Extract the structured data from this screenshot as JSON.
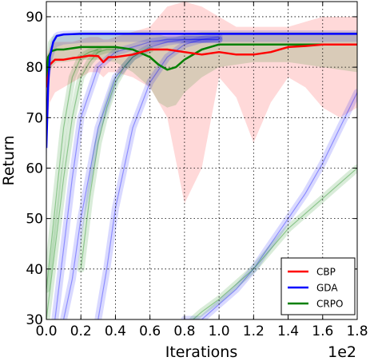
{
  "chart_data": {
    "type": "line",
    "xlabel": "Iterations",
    "ylabel": "Return",
    "x_offset_label": "1e2",
    "xlim": [
      0,
      1.8
    ],
    "ylim": [
      30,
      93
    ],
    "xticks": [
      0.0,
      0.2,
      0.4,
      0.6,
      0.8,
      1.0,
      1.2,
      1.4,
      1.6,
      1.8
    ],
    "xtick_labels": [
      "0.0",
      "0.2",
      "0.4",
      "0.6",
      "0.8",
      "1.0",
      "1.2",
      "1.4",
      "1.6",
      "1.8"
    ],
    "yticks": [
      30,
      40,
      50,
      60,
      70,
      80,
      90
    ],
    "ytick_labels": [
      "30",
      "40",
      "50",
      "60",
      "70",
      "80",
      "90"
    ],
    "grid": true,
    "legend_position": "lower-right",
    "colors": {
      "CBP": "#ff0000",
      "GDA": "#0000ff",
      "CRPO": "#008000"
    },
    "series": [
      {
        "name": "CBP",
        "x": [
          0.0,
          0.02,
          0.05,
          0.1,
          0.15,
          0.2,
          0.25,
          0.3,
          0.33,
          0.36,
          0.4,
          0.5,
          0.6,
          0.7,
          0.8,
          0.9,
          1.0,
          1.1,
          1.2,
          1.3,
          1.4,
          1.5,
          1.6,
          1.7,
          1.8
        ],
        "mean": [
          76,
          80.5,
          81.5,
          81.5,
          81.8,
          82,
          82.3,
          82.2,
          81,
          82,
          82,
          82.5,
          83.5,
          83.5,
          83,
          82.5,
          83,
          82.5,
          82.5,
          83,
          84,
          84.2,
          84.5,
          84.5,
          84.5
        ],
        "lower": [
          66,
          73,
          75,
          76,
          77,
          78,
          79,
          79,
          78,
          79,
          79,
          78,
          76,
          70,
          53,
          60,
          78,
          74,
          65,
          73,
          78,
          76,
          72,
          70,
          72
        ],
        "upper": [
          82,
          84,
          85,
          85,
          85,
          85.5,
          86,
          86,
          85.5,
          85.5,
          86,
          87,
          88,
          92,
          93,
          92,
          90,
          88,
          88,
          88,
          88,
          89,
          90,
          90,
          90
        ]
      },
      {
        "name": "GDA",
        "x": [
          0.0,
          0.01,
          0.02,
          0.04,
          0.06,
          0.1,
          0.2,
          0.4,
          0.6,
          0.8,
          1.0,
          1.2,
          1.4,
          1.6,
          1.8
        ],
        "mean": [
          64,
          76,
          82,
          85,
          86.2,
          86.5,
          86.6,
          86.6,
          86.6,
          86.6,
          86.6,
          86.6,
          86.6,
          86.6,
          86.6
        ],
        "lower": [
          60,
          70,
          78,
          82,
          84,
          84.5,
          84.8,
          85,
          85,
          85,
          85,
          85,
          85,
          85,
          85
        ],
        "upper": [
          68,
          80,
          84.5,
          86.5,
          87,
          87.2,
          87.3,
          87.3,
          87.3,
          87.3,
          87.3,
          87.3,
          87.3,
          87.3,
          87.3
        ]
      },
      {
        "name": "CRPO",
        "x": [
          0.0,
          0.01,
          0.03,
          0.06,
          0.1,
          0.2,
          0.3,
          0.4,
          0.5,
          0.6,
          0.65,
          0.7,
          0.75,
          0.8,
          0.9,
          1.0,
          1.2,
          1.4,
          1.6,
          1.8
        ],
        "mean": [
          77,
          82,
          83.2,
          83.5,
          83.5,
          84,
          84,
          84,
          83.5,
          82,
          80.5,
          79.5,
          80,
          81.5,
          83.5,
          84.5,
          84.5,
          84.5,
          84.5,
          84.5
        ],
        "lower": [
          72,
          78,
          80,
          81,
          81,
          81.5,
          81.5,
          81,
          79,
          76,
          73,
          72,
          72.5,
          75,
          78,
          80,
          81,
          81,
          80,
          79
        ],
        "upper": [
          82,
          85,
          86,
          86.5,
          86.5,
          87,
          87,
          87,
          87,
          87,
          86.5,
          86,
          86,
          86.5,
          87,
          87,
          87,
          87,
          87,
          87
        ]
      }
    ],
    "trial_curves": [
      {
        "series": "GDA",
        "x": [
          0.05,
          0.1,
          0.15,
          0.2,
          0.3,
          0.4,
          0.5,
          0.6,
          0.7,
          0.8,
          0.9,
          1.0
        ],
        "y": [
          30,
          44,
          58,
          70,
          80,
          83,
          84,
          85,
          85.5,
          85.5,
          85.5,
          85.5
        ]
      },
      {
        "series": "GDA",
        "x": [
          0.1,
          0.15,
          0.2,
          0.3,
          0.4,
          0.5,
          0.6,
          0.7,
          0.8,
          0.9,
          1.0
        ],
        "y": [
          30,
          38,
          50,
          68,
          78,
          82,
          84,
          85,
          85.5,
          85.5,
          85.5
        ]
      },
      {
        "series": "GDA",
        "x": [
          0.3,
          0.35,
          0.4,
          0.5,
          0.6,
          0.7,
          0.8,
          0.9,
          1.0
        ],
        "y": [
          30,
          40,
          52,
          68,
          77,
          82,
          84.5,
          85.5,
          86
        ]
      },
      {
        "series": "GDA",
        "x": [
          0.8,
          0.9,
          1.0,
          1.1,
          1.2,
          1.3,
          1.4,
          1.5,
          1.6,
          1.7,
          1.8
        ],
        "y": [
          30,
          30,
          33,
          36,
          40,
          45,
          50,
          55,
          61,
          68,
          75
        ]
      },
      {
        "series": "CRPO",
        "x": [
          0.0,
          0.05,
          0.1,
          0.15,
          0.2,
          0.25,
          0.3,
          0.35,
          0.4
        ],
        "y": [
          30,
          44,
          58,
          70,
          78,
          81,
          83,
          83.5,
          83.5
        ]
      },
      {
        "series": "CRPO",
        "x": [
          0.0,
          0.05,
          0.1,
          0.15,
          0.2,
          0.25,
          0.3
        ],
        "y": [
          36,
          52,
          68,
          78,
          82,
          83,
          83.5
        ]
      },
      {
        "series": "CRPO",
        "x": [
          0.2,
          0.25,
          0.3,
          0.35,
          0.4,
          0.45,
          0.5,
          0.55,
          0.6
        ],
        "y": [
          40,
          54,
          65,
          72,
          77,
          80,
          82,
          83,
          83.5
        ]
      },
      {
        "series": "CRPO",
        "x": [
          0.85,
          0.9,
          1.0,
          1.1,
          1.2,
          1.3,
          1.4,
          1.5,
          1.6,
          1.7,
          1.8
        ],
        "y": [
          30,
          31.5,
          34,
          37,
          40,
          44,
          48,
          51,
          54,
          57,
          60
        ]
      }
    ]
  }
}
